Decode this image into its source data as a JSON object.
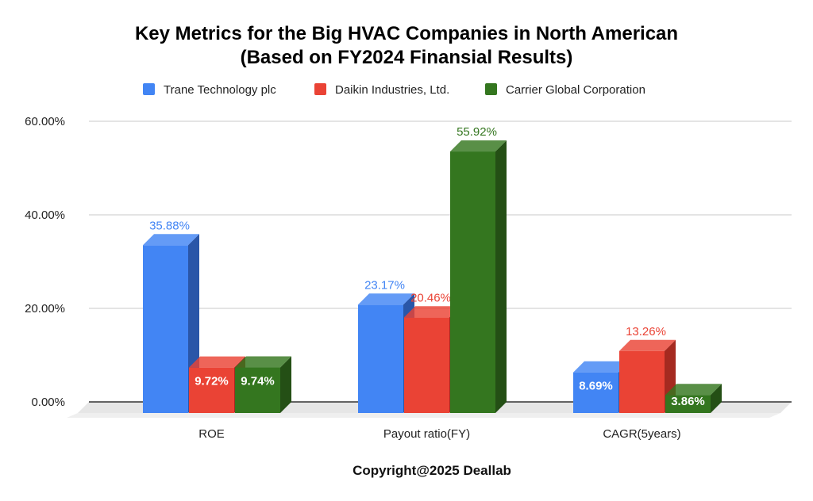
{
  "chart_data": {
    "type": "bar",
    "title": "Key Metrics for the Big HVAC Companies in North American",
    "subtitle": "(Based on FY2024 Finansial Results)",
    "categories": [
      "ROE",
      "Payout ratio(FY)",
      "CAGR(5years)"
    ],
    "series": [
      {
        "name": "Trane Technology plc",
        "color": "#4285f4",
        "side_color": "#2a56a8",
        "values": [
          35.88,
          23.17,
          8.69
        ],
        "labels": [
          "35.88%",
          "23.17%",
          "8.69%"
        ]
      },
      {
        "name": "Daikin Industries, Ltd.",
        "color": "#ea4335",
        "side_color": "#a52a20",
        "values": [
          9.72,
          20.46,
          13.26
        ],
        "labels": [
          "9.72%",
          "20.46%",
          "13.26%"
        ]
      },
      {
        "name": "Carrier Global Corporation",
        "color": "#34761f",
        "side_color": "#244f15",
        "values": [
          9.74,
          55.92,
          3.86
        ],
        "labels": [
          "9.74%",
          "55.92%",
          "3.86%"
        ]
      }
    ],
    "y_ticks": [
      "0.00%",
      "20.00%",
      "40.00%",
      "60.00%"
    ],
    "y_tick_values": [
      0,
      20,
      40,
      60
    ],
    "ylim": [
      0,
      60
    ],
    "grid": true,
    "legend_position": "top",
    "style": "3d-bar"
  },
  "footer": "Copyright@2025 Deallab"
}
